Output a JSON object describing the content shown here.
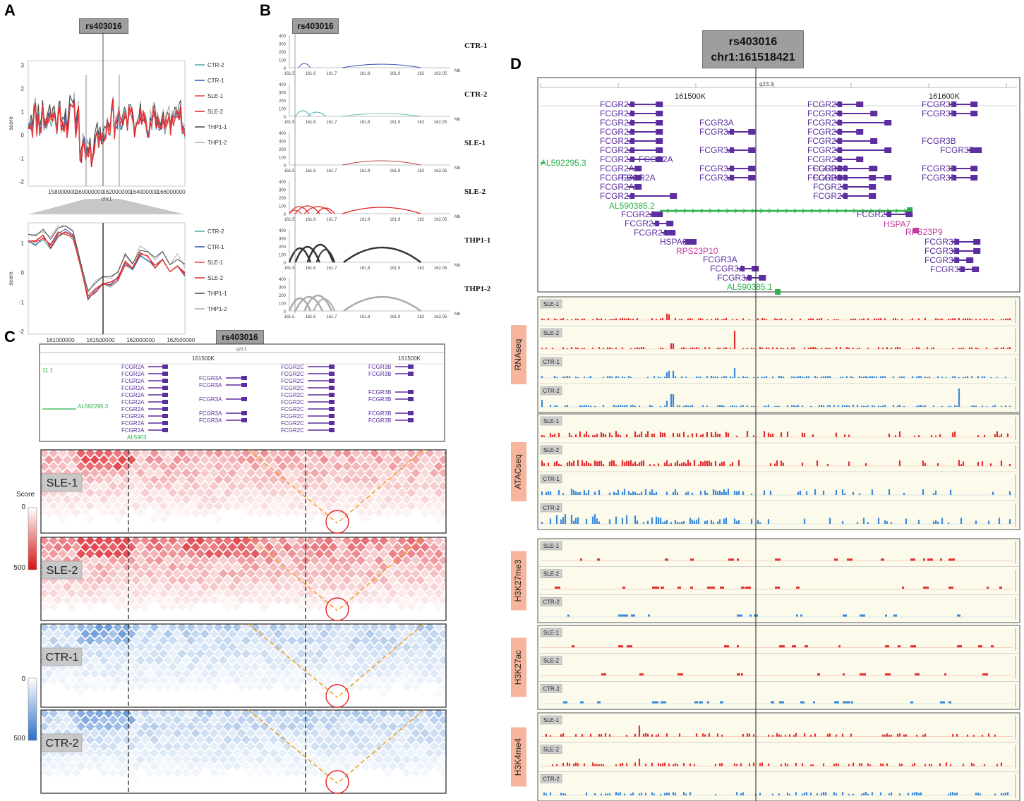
{
  "panels": {
    "A": "A",
    "B": "B",
    "C": "C",
    "D": "D"
  },
  "snp": "rs403016",
  "snp_coord": "chr1:161518421",
  "panel_a": {
    "chart_data": [
      {
        "type": "line",
        "xlabel": "chr1",
        "ylabel": "score",
        "xlim": [
          155500000,
          167000000
        ],
        "ylim": [
          -2.2,
          3.2
        ],
        "xticks": [
          "158000000",
          "160000000",
          "162000000",
          "164000000",
          "166000000"
        ],
        "xtick_values": [
          158000000,
          160000000,
          162000000,
          164000000,
          166000000
        ],
        "yticks": [
          "3",
          "2",
          "1",
          "0",
          "-1",
          "-2"
        ],
        "legend": [
          "CTR-2",
          "CTR-1",
          "SLE-1",
          "SLE-2",
          "THP1-1",
          "THP1-2"
        ]
      },
      {
        "type": "line",
        "xlabel": "chr1",
        "ylabel": "score",
        "xlim": [
          160600000,
          162550000
        ],
        "ylim": [
          -2.1,
          1.7
        ],
        "xticks": [
          "161000000",
          "161500000",
          "162000000",
          "162500000"
        ],
        "xtick_values": [
          161000000,
          161500000,
          162000000,
          162500000
        ],
        "yticks": [
          "1",
          "0",
          "-1",
          "-2"
        ],
        "legend": [
          "CTR-2",
          "CTR-1",
          "SLE-1",
          "SLE-2",
          "THP1-1",
          "THP1-2"
        ]
      }
    ],
    "colors": {
      "CTR-2": "#4aaea6",
      "CTR-1": "#2850b8",
      "SLE-1": "#e84040",
      "SLE-2": "#e02020",
      "THP1-1": "#444444",
      "THP1-2": "#aaaaaa"
    }
  },
  "panel_b": {
    "chart_data": {
      "type": "arc",
      "xlabel": "Mb",
      "ylim": [
        0,
        400
      ],
      "yticks": [
        "400",
        "300",
        "200",
        "100",
        "0"
      ],
      "xticks": [
        "161.5",
        "161.6",
        "161.7",
        "161.8",
        "161.9",
        "162",
        "162.05"
      ],
      "tracks": [
        {
          "name": "CTR-1",
          "color": "#2850b8"
        },
        {
          "name": "CTR-2",
          "color": "#4aaea6"
        },
        {
          "name": "SLE-1",
          "color": "#c04040"
        },
        {
          "name": "SLE-2",
          "color": "#e02020"
        },
        {
          "name": "THP1-1",
          "color": "#333333"
        },
        {
          "name": "THP1-2",
          "color": "#aaaaaa"
        }
      ]
    }
  },
  "panel_c": {
    "genes_header": {
      "band": "q23.3",
      "pos1": "161500K",
      "pos2": "161500K",
      "left": "11.1"
    },
    "heatmaps": [
      {
        "name": "SLE-1",
        "scheme": "red"
      },
      {
        "name": "SLE-2",
        "scheme": "red"
      },
      {
        "name": "CTR-1",
        "scheme": "blue"
      },
      {
        "name": "CTR-2",
        "scheme": "blue"
      }
    ],
    "scale_red": {
      "title": "Score",
      "min": "0",
      "max": "500"
    },
    "scale_blue": {
      "min": "0",
      "max": "500"
    }
  },
  "panel_d": {
    "band": "q23.3",
    "pos1": "161500K",
    "pos2": "161600K",
    "genes": {
      "FCGR2A": "FCGR2A",
      "FCGR3A": "FCGR3A",
      "FCGR2C": "FCGR2C",
      "FCGR3B": "FCGR3B",
      "AL592295_3": "AL592295.3",
      "AL590385_2": "AL590385.2",
      "AL590385_1": "AL590385.1",
      "HSPA6": "HSPA6",
      "HSPA7": "HSPA7",
      "RPS23P10": "RPS23P10",
      "RPS23P9": "RPS23P9"
    },
    "tracks": [
      {
        "tag": "RNAseq",
        "samples": [
          "SLE-1",
          "SLE-2",
          "CTR-1",
          "CTR-2"
        ]
      },
      {
        "tag": "ATACseq",
        "samples": [
          "SLE-1",
          "SLE-2",
          "CTR-1",
          "CTR-2"
        ]
      },
      {
        "tag": "H3K27me3",
        "samples": [
          "SLE-1",
          "SLE-2",
          "CTR-2"
        ]
      },
      {
        "tag": "H3K27ac",
        "samples": [
          "SLE-1",
          "SLE-2",
          "CTR-2"
        ]
      },
      {
        "tag": "H3K4me4",
        "samples": [
          "SLE-1",
          "SLE-2",
          "CTR-2"
        ]
      }
    ],
    "colors": {
      "SLE": "#e03030",
      "CTR": "#3d8ad8",
      "gene": "#5b2d9e",
      "green": "#2db34a",
      "pseudo": "#c03aa0"
    }
  }
}
